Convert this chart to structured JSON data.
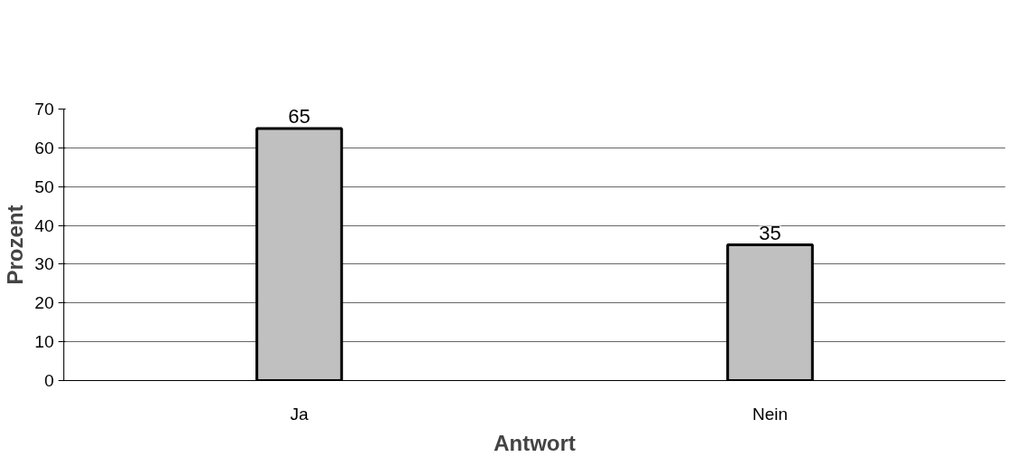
{
  "chart_data": {
    "type": "bar",
    "xlabel": "Antwort",
    "ylabel": "Prozent",
    "categories": [
      "Ja",
      "Nein"
    ],
    "values": [
      65,
      35
    ],
    "color": "#c0c0c0",
    "ylim": [
      0,
      70
    ],
    "yticks": [
      0,
      10,
      20,
      30,
      40,
      50,
      60,
      70
    ],
    "grid": "y",
    "data_labels": true
  }
}
